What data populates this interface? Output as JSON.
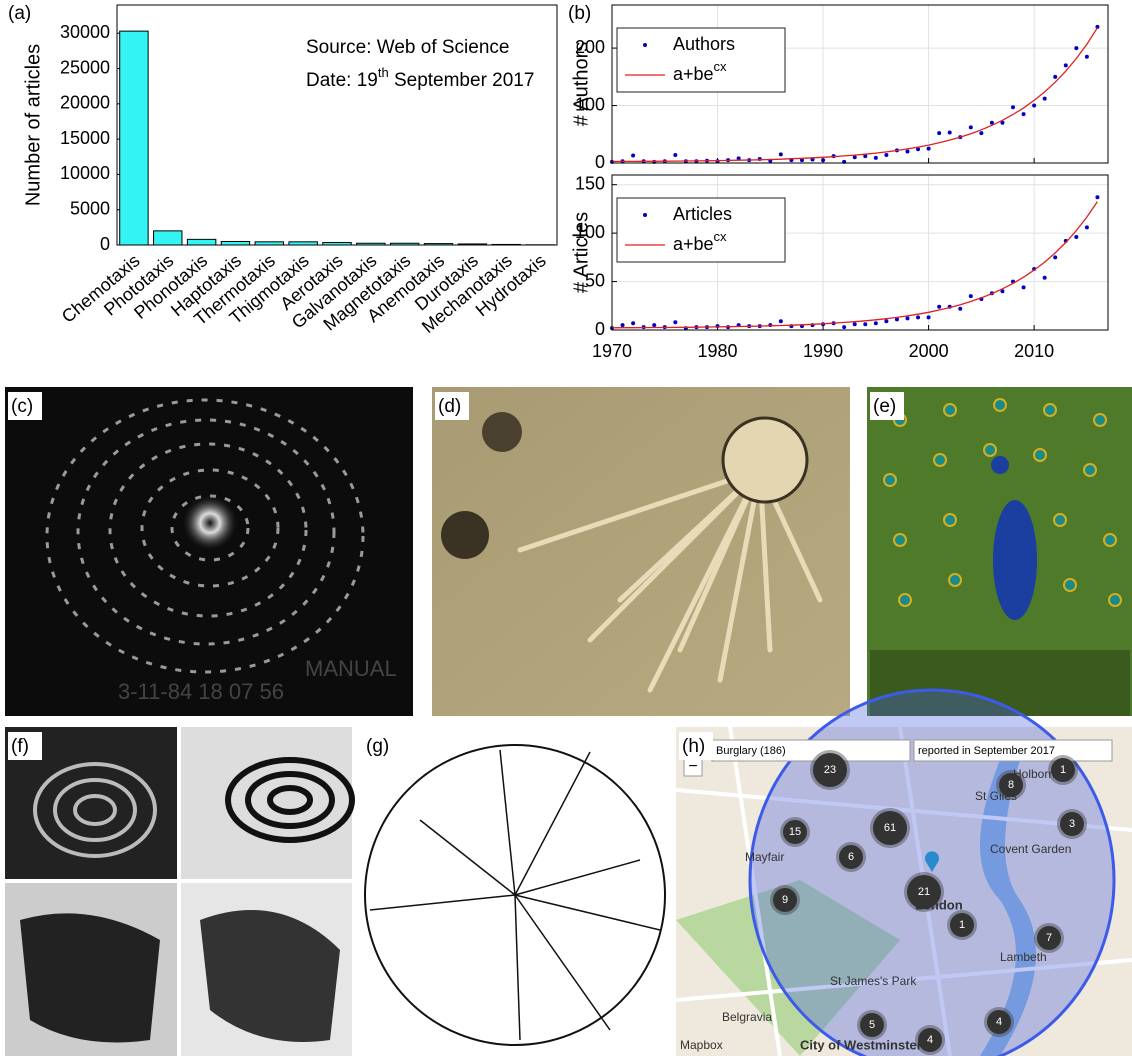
{
  "chart_data": [
    {
      "type": "bar",
      "panel_label": "(a)",
      "ylabel": "Number of articles",
      "categories": [
        "Chemotaxis",
        "Phototaxis",
        "Phonotaxis",
        "Haptotaxis",
        "Thermotaxis",
        "Thigmotaxis",
        "Aerotaxis",
        "Galvanotaxis",
        "Magnetotaxis",
        "Anemotaxis",
        "Durotaxis",
        "Mechanotaxis",
        "Hydrotaxis"
      ],
      "values": [
        30300,
        2000,
        800,
        500,
        450,
        450,
        350,
        250,
        250,
        200,
        150,
        80,
        30
      ],
      "color": "#33f3f3",
      "ylim": [
        0,
        34000
      ],
      "yticks": [
        0,
        5000,
        10000,
        15000,
        20000,
        25000,
        30000
      ],
      "grid": false,
      "annotations": [
        "Source: Web of Science",
        [
          "Date: 19",
          "th",
          " September 2017"
        ]
      ]
    },
    {
      "type": "scatter",
      "panel_label": "(b)",
      "ylabel": "# Authors",
      "grid": true,
      "legend": "upper left",
      "show_xtick_labels": false,
      "x": [
        1970,
        1971,
        1972,
        1973,
        1974,
        1975,
        1976,
        1977,
        1978,
        1979,
        1980,
        1981,
        1982,
        1983,
        1984,
        1985,
        1986,
        1987,
        1988,
        1989,
        1990,
        1991,
        1992,
        1993,
        1994,
        1995,
        1996,
        1997,
        1998,
        1999,
        2000,
        2001,
        2002,
        2003,
        2004,
        2005,
        2006,
        2007,
        2008,
        2009,
        2010,
        2011,
        2012,
        2013,
        2014,
        2015,
        2016
      ],
      "xlim": [
        1970,
        2017
      ],
      "xticks": [
        1970,
        1980,
        1990,
        2000,
        2010
      ],
      "ylim": [
        0,
        275
      ],
      "yticks": [
        0,
        100,
        200
      ],
      "series": [
        {
          "name": "Authors",
          "style": "marker",
          "color": "#0000cc",
          "values": [
            2,
            3,
            13,
            3,
            2,
            3,
            14,
            3,
            3,
            4,
            3,
            5,
            8,
            5,
            7,
            4,
            15,
            5,
            5,
            6,
            5,
            12,
            2,
            10,
            12,
            9,
            14,
            22,
            20,
            24,
            25,
            52,
            53,
            45,
            62,
            52,
            70,
            70,
            97,
            85,
            100,
            112,
            150,
            170,
            200,
            185,
            237
          ]
        },
        {
          "name": [
            "a+be",
            "cx"
          ],
          "style": "line",
          "color": "#e02020",
          "values": [
            2.6,
            2.7,
            2.8,
            2.9,
            3.0,
            3.1,
            3.3,
            3.5,
            3.7,
            3.9,
            4.2,
            4.5,
            4.8,
            5.2,
            5.6,
            6.1,
            6.7,
            7.4,
            8.1,
            9.0,
            9.9,
            11.0,
            12.3,
            13.7,
            15.4,
            17.2,
            19.3,
            21.7,
            24.5,
            27.6,
            31.1,
            35.2,
            39.8,
            45.1,
            51.0,
            57.8,
            65.6,
            74.4,
            84.5,
            95.9,
            109.0,
            123.8,
            140.7,
            160.0,
            181.9,
            206.8,
            235.3
          ]
        }
      ]
    },
    {
      "type": "scatter",
      "ylabel": "# Articles",
      "grid": true,
      "legend": "upper left",
      "show_xtick_labels": true,
      "x": [
        1970,
        1971,
        1972,
        1973,
        1974,
        1975,
        1976,
        1977,
        1978,
        1979,
        1980,
        1981,
        1982,
        1983,
        1984,
        1985,
        1986,
        1987,
        1988,
        1989,
        1990,
        1991,
        1992,
        1993,
        1994,
        1995,
        1996,
        1997,
        1998,
        1999,
        2000,
        2001,
        2002,
        2003,
        2004,
        2005,
        2006,
        2007,
        2008,
        2009,
        2010,
        2011,
        2012,
        2013,
        2014,
        2015,
        2016
      ],
      "xlim": [
        1970,
        2017
      ],
      "xticks": [
        1970,
        1980,
        1990,
        2000,
        2010
      ],
      "ylim": [
        0,
        160
      ],
      "yticks": [
        0,
        50,
        100,
        150
      ],
      "series": [
        {
          "name": "Articles",
          "style": "marker",
          "color": "#0000cc",
          "values": [
            2,
            5,
            7,
            3,
            5,
            3,
            8,
            2,
            3,
            3,
            4,
            3,
            5,
            4,
            4,
            5,
            9,
            4,
            4,
            5,
            6,
            7,
            3,
            6,
            6,
            7,
            9,
            11,
            12,
            13,
            13,
            24,
            24,
            22,
            35,
            32,
            38,
            40,
            50,
            44,
            63,
            54,
            75,
            92,
            96,
            106,
            137
          ]
        },
        {
          "name": [
            "a+be",
            "cx"
          ],
          "style": "line",
          "color": "#e02020",
          "values": [
            2.3,
            2.4,
            2.4,
            2.5,
            2.6,
            2.6,
            2.7,
            2.8,
            2.9,
            3.1,
            3.2,
            3.4,
            3.6,
            3.8,
            4.0,
            4.3,
            4.6,
            5.0,
            5.4,
            5.9,
            6.4,
            7.1,
            7.8,
            8.6,
            9.5,
            10.5,
            11.7,
            13.0,
            14.6,
            16.3,
            18.3,
            20.6,
            23.1,
            26.1,
            29.4,
            33.2,
            37.6,
            42.5,
            48.1,
            54.5,
            61.8,
            70.1,
            79.6,
            90.3,
            102.6,
            116.6,
            132.5
          ]
        }
      ]
    }
  ],
  "images": [
    {
      "label": "(c)",
      "overlay_text": [
        "MANUAL",
        "3-11-84   18 07 56"
      ]
    },
    {
      "label": "(d)"
    },
    {
      "label": "(e)"
    },
    {
      "label": "(f)"
    },
    {
      "label": "(g)"
    },
    {
      "label": "(h)",
      "dropdowns": [
        "Burglary (186)",
        "reported in September 2017"
      ],
      "zoom": "−",
      "clusters": [
        23,
        1,
        8,
        15,
        61,
        3,
        6,
        21,
        9,
        1,
        7,
        5,
        4,
        4
      ],
      "places": [
        "Mayfair",
        "St Giles",
        "Holborn",
        "Covent Garden",
        "London",
        "Lambeth",
        "Belgravia",
        "City of Westminster",
        "St James's Park",
        "Mapbox"
      ]
    }
  ]
}
